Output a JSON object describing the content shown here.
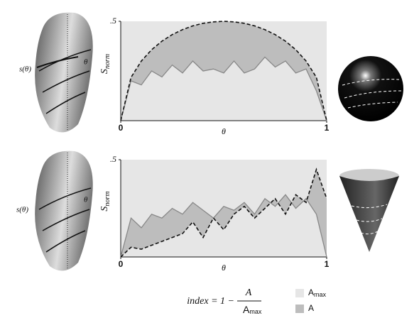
{
  "chart_data": [
    {
      "type": "line",
      "y_label": "S",
      "y_label_sub": "norm",
      "x_label": "θ",
      "shape_labels": [
        "s(θ)",
        "θ"
      ],
      "x": [
        0,
        0.05,
        0.1,
        0.15,
        0.2,
        0.25,
        0.3,
        0.35,
        0.4,
        0.45,
        0.5,
        0.55,
        0.6,
        0.65,
        0.7,
        0.75,
        0.8,
        0.85,
        0.9,
        0.95,
        1
      ],
      "xlim": [
        0,
        1
      ],
      "xticks": [
        0,
        1
      ],
      "ylim": [
        0,
        0.5
      ],
      "yticks": [
        {
          "value": 0.5,
          "label": ".5"
        }
      ],
      "series": [
        {
          "color": "#111111",
          "dashed": true,
          "values": [
            0,
            0.218,
            0.3,
            0.357,
            0.4,
            0.433,
            0.458,
            0.477,
            0.49,
            0.497,
            0.5,
            0.497,
            0.49,
            0.477,
            0.458,
            0.433,
            0.4,
            0.357,
            0.3,
            0.218,
            0
          ]
        },
        {
          "color": "#888888",
          "dashed": false,
          "values": [
            0,
            0.2,
            0.18,
            0.25,
            0.22,
            0.28,
            0.24,
            0.3,
            0.25,
            0.26,
            0.24,
            0.3,
            0.24,
            0.26,
            0.32,
            0.27,
            0.3,
            0.24,
            0.26,
            0.15,
            0
          ]
        }
      ]
    },
    {
      "type": "line",
      "y_label": "S",
      "y_label_sub": "norm",
      "x_label": "θ",
      "shape_labels": [
        "s(θ)",
        "θ"
      ],
      "x": [
        0,
        0.05,
        0.1,
        0.15,
        0.2,
        0.25,
        0.3,
        0.35,
        0.4,
        0.45,
        0.5,
        0.55,
        0.6,
        0.65,
        0.7,
        0.75,
        0.8,
        0.85,
        0.9,
        0.95,
        1
      ],
      "xlim": [
        0,
        1
      ],
      "xticks": [
        0,
        1
      ],
      "ylim": [
        0,
        0.5
      ],
      "yticks": [
        {
          "value": 0.5,
          "label": ".5"
        }
      ],
      "series": [
        {
          "color": "#111111",
          "dashed": true,
          "values": [
            0,
            0.05,
            0.04,
            0.06,
            0.08,
            0.1,
            0.12,
            0.18,
            0.1,
            0.2,
            0.14,
            0.22,
            0.26,
            0.2,
            0.25,
            0.3,
            0.22,
            0.32,
            0.28,
            0.45,
            0.3
          ]
        },
        {
          "color": "#888888",
          "dashed": false,
          "values": [
            0,
            0.2,
            0.15,
            0.22,
            0.2,
            0.25,
            0.22,
            0.28,
            0.24,
            0.2,
            0.26,
            0.24,
            0.28,
            0.22,
            0.3,
            0.26,
            0.32,
            0.25,
            0.3,
            0.22,
            0
          ]
        }
      ]
    }
  ],
  "formula": {
    "lhs": "index = 1 −",
    "numerator": "A",
    "denominator": "A",
    "denominator_sub": "max"
  },
  "legend": [
    {
      "label": "A",
      "sub": "max",
      "color": "#e6e6e6"
    },
    {
      "label": "A",
      "color": "#bdbdbd"
    }
  ]
}
